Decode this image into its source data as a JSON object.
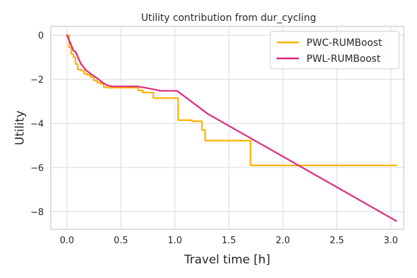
{
  "chart_data": {
    "type": "line",
    "title": "Utility contribution from dur_cycling",
    "xlabel": "Travel time [h]",
    "ylabel": "Utility",
    "xlim": [
      -0.15,
      3.12
    ],
    "ylim": [
      -8.8,
      0.4
    ],
    "grid": true,
    "legend_position": "top-right",
    "x_ticks": [
      0.0,
      0.5,
      1.0,
      1.5,
      2.0,
      2.5,
      3.0
    ],
    "x_tick_labels": [
      "0.0",
      "0.5",
      "1.0",
      "1.5",
      "2.0",
      "2.5",
      "3.0"
    ],
    "y_ticks": [
      0,
      -2,
      -4,
      -6,
      -8
    ],
    "y_tick_labels": [
      "0",
      "−2",
      "−4",
      "−6",
      "−8"
    ],
    "series": [
      {
        "name": "PWC-RUMBoost",
        "color": "#FFB000",
        "step": true,
        "x": [
          0.0,
          0.02,
          0.04,
          0.06,
          0.08,
          0.1,
          0.13,
          0.16,
          0.19,
          0.22,
          0.25,
          0.28,
          0.31,
          0.34,
          0.37,
          0.41,
          0.66,
          0.7,
          0.8,
          1.03,
          1.16,
          1.25,
          1.28,
          1.7,
          3.05
        ],
        "y": [
          0.0,
          -0.55,
          -0.85,
          -1.0,
          -1.3,
          -1.55,
          -1.6,
          -1.75,
          -1.8,
          -1.9,
          -2.05,
          -2.15,
          -2.2,
          -2.35,
          -2.38,
          -2.38,
          -2.5,
          -2.6,
          -2.85,
          -3.85,
          -3.9,
          -4.3,
          -4.78,
          -5.9,
          -5.9
        ]
      },
      {
        "name": "PWL-RUMBoost",
        "color": "#DC267F",
        "step": false,
        "x": [
          0.0,
          0.04,
          0.06,
          0.08,
          0.13,
          0.18,
          0.23,
          0.28,
          0.34,
          0.38,
          0.42,
          0.65,
          0.75,
          0.87,
          1.02,
          1.3,
          3.05
        ],
        "y": [
          0.0,
          -0.45,
          -0.7,
          -0.75,
          -1.3,
          -1.6,
          -1.78,
          -1.95,
          -2.18,
          -2.28,
          -2.32,
          -2.32,
          -2.4,
          -2.52,
          -2.52,
          -3.55,
          -8.42
        ]
      }
    ]
  }
}
